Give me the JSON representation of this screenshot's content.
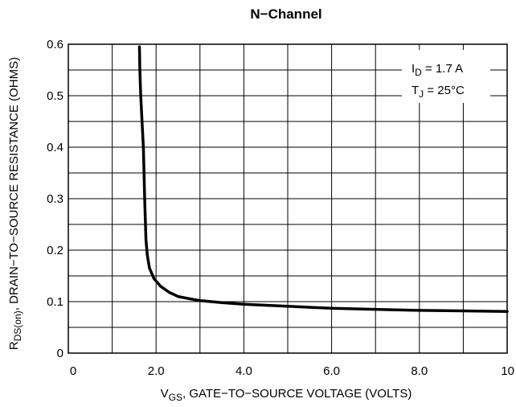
{
  "chart_data": {
    "type": "line",
    "title": "N−Channel",
    "xlabel": {
      "main": "V",
      "sub": "GS",
      "rest": ", GATE−TO−SOURCE VOLTAGE (VOLTS)"
    },
    "ylabel": {
      "main": "R",
      "sub": "DS(on)",
      "rest": ", DRAIN−TO−SOURCE RESISTANCE (OHMS)"
    },
    "xlim": [
      0,
      10
    ],
    "ylim": [
      0,
      0.6
    ],
    "x_ticks": [
      "0",
      "2.0",
      "4.0",
      "6.0",
      "8.0",
      "10"
    ],
    "y_ticks": [
      "0",
      "0.1",
      "0.2",
      "0.3",
      "0.4",
      "0.5",
      "0.6"
    ],
    "grid": true,
    "annotations": [
      {
        "main": "I",
        "sub": "D",
        "rest": " = 1.7 A"
      },
      {
        "main": "T",
        "sub": "J",
        "rest": " = 25°C"
      }
    ],
    "series": [
      {
        "color": "#000000",
        "points": [
          [
            1.62,
            0.595
          ],
          [
            1.63,
            0.55
          ],
          [
            1.65,
            0.5
          ],
          [
            1.68,
            0.45
          ],
          [
            1.71,
            0.4
          ],
          [
            1.74,
            0.3
          ],
          [
            1.77,
            0.22
          ],
          [
            1.8,
            0.19
          ],
          [
            1.85,
            0.165
          ],
          [
            1.95,
            0.145
          ],
          [
            2.1,
            0.13
          ],
          [
            2.3,
            0.118
          ],
          [
            2.5,
            0.11
          ],
          [
            2.8,
            0.105
          ],
          [
            3.0,
            0.102
          ],
          [
            3.5,
            0.098
          ],
          [
            4.0,
            0.095
          ],
          [
            5.0,
            0.091
          ],
          [
            6.0,
            0.087
          ],
          [
            7.0,
            0.085
          ],
          [
            8.0,
            0.083
          ],
          [
            9.0,
            0.082
          ],
          [
            10.0,
            0.081
          ]
        ]
      }
    ]
  }
}
